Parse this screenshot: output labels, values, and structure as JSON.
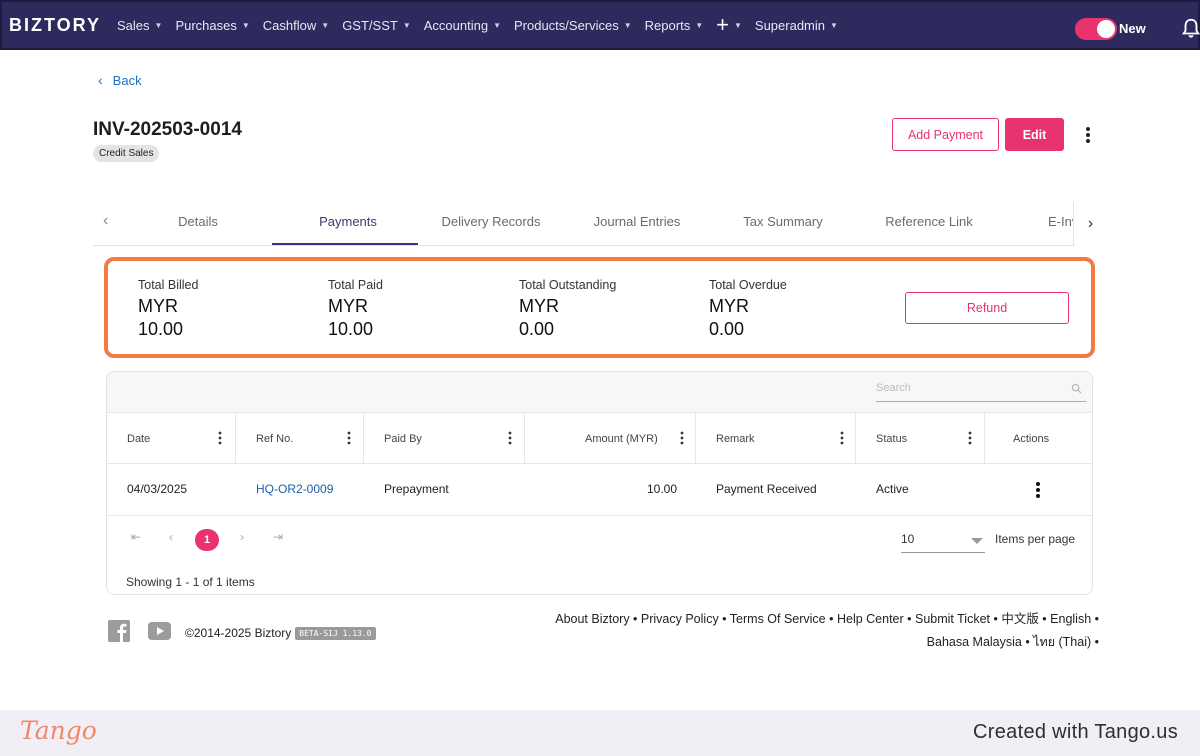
{
  "nav": {
    "brand": "BIZTORY",
    "items": [
      {
        "label": "Sales"
      },
      {
        "label": "Purchases"
      },
      {
        "label": "Cashflow"
      },
      {
        "label": "GST/SST"
      },
      {
        "label": "Accounting"
      },
      {
        "label": "Products/Services"
      },
      {
        "label": "Reports"
      }
    ],
    "plus": "+",
    "user": "Superadmin",
    "toggle_label": "New",
    "toggle_on": true
  },
  "page": {
    "back_label": "Back",
    "invoice_number": "INV-202503-0014",
    "badge": "Credit Sales",
    "add_payment_label": "Add Payment",
    "edit_label": "Edit"
  },
  "tabs": [
    {
      "label": "Details"
    },
    {
      "label": "Payments",
      "active": true
    },
    {
      "label": "Delivery Records"
    },
    {
      "label": "Journal Entries"
    },
    {
      "label": "Tax Summary"
    },
    {
      "label": "Reference Link"
    },
    {
      "label": "E-Inv"
    }
  ],
  "summary": {
    "items": [
      {
        "label": "Total Billed",
        "currency": "MYR",
        "value": "10.00"
      },
      {
        "label": "Total Paid",
        "currency": "MYR",
        "value": "10.00"
      },
      {
        "label": "Total Outstanding",
        "currency": "MYR",
        "value": "0.00"
      },
      {
        "label": "Total Overdue",
        "currency": "MYR",
        "value": "0.00"
      }
    ],
    "refund_label": "Refund"
  },
  "table": {
    "search_placeholder": "Search",
    "columns": [
      "Date",
      "Ref No.",
      "Paid By",
      "Amount (MYR)",
      "Remark",
      "Status",
      "Actions"
    ],
    "rows": [
      {
        "date": "04/03/2025",
        "ref": "HQ-OR2-0009",
        "paid_by": "Prepayment",
        "amount": "10.00",
        "remark": "Payment Received",
        "status": "Active"
      }
    ],
    "current_page": "1",
    "page_size": "10",
    "items_per_page_label": "Items per page",
    "showing": "Showing 1 - 1 of 1 items"
  },
  "footer": {
    "copyright": "©2014-2025 Biztory",
    "version": "BETA-SIJ 1.13.0",
    "links_line1": "About Biztory • Privacy Policy • Terms Of Service • Help Center • Submit Ticket • 中文版 • English •",
    "links_line2": "Bahasa Malaysia • ไทย (Thai) •"
  },
  "tango": {
    "logo": "Tango",
    "credit": "Created with Tango.us"
  },
  "colors": {
    "nav_bg": "#2e2a5e",
    "accent": "#e8336e",
    "highlight": "#f47a42",
    "link": "#1a5fa8"
  }
}
